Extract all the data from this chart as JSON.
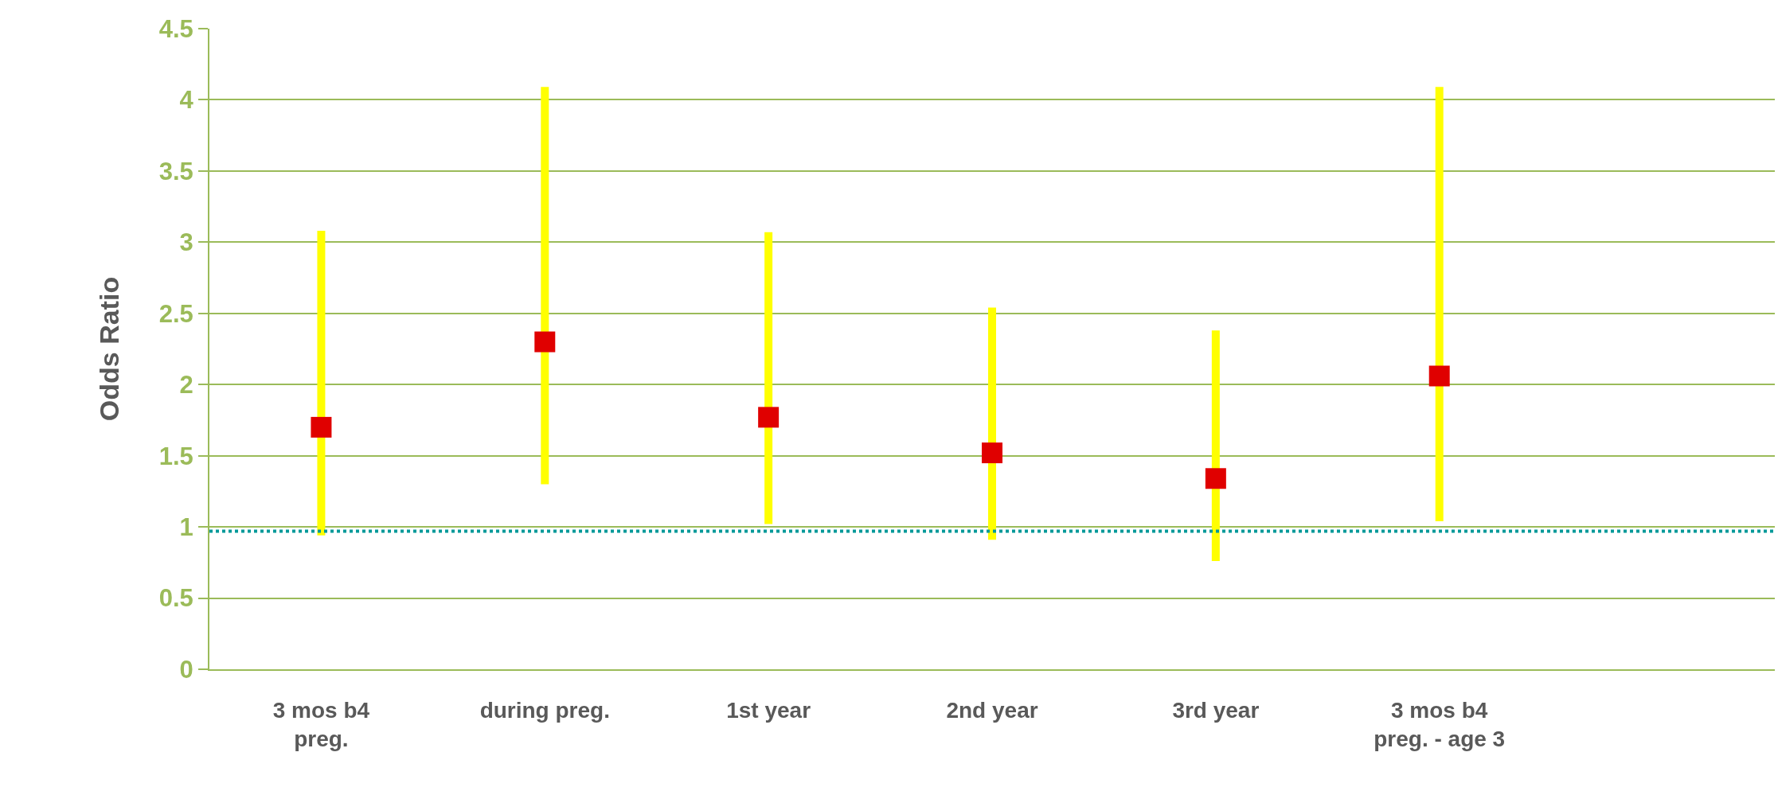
{
  "chart_data": {
    "type": "scatter",
    "ylabel": "Odds Ratio",
    "categories": [
      "3 mos b4\npreg.",
      "during preg.",
      "1st year",
      "2nd year",
      "3rd year",
      "3 mos b4\npreg. - age 3",
      null
    ],
    "series": [
      {
        "color": "#e00000",
        "values": [
          1.7,
          2.3,
          1.77,
          1.52,
          1.34,
          2.06,
          null
        ],
        "errors": [
          [
            0.94,
            3.08
          ],
          [
            1.3,
            4.09
          ],
          [
            1.02,
            3.07
          ],
          [
            0.91,
            2.54
          ],
          [
            0.76,
            2.38
          ],
          [
            1.04,
            4.09
          ],
          null
        ]
      }
    ],
    "marker": "square",
    "ylim": [
      0,
      4.5
    ],
    "yticks": [
      0,
      0.5,
      1,
      1.5,
      2,
      2.5,
      3,
      3.5,
      4,
      4.5
    ],
    "grid": "y",
    "ref_lines": [
      {
        "axis": "y",
        "value": 0.97,
        "color": "#009999",
        "line_style": "dotted"
      }
    ]
  }
}
